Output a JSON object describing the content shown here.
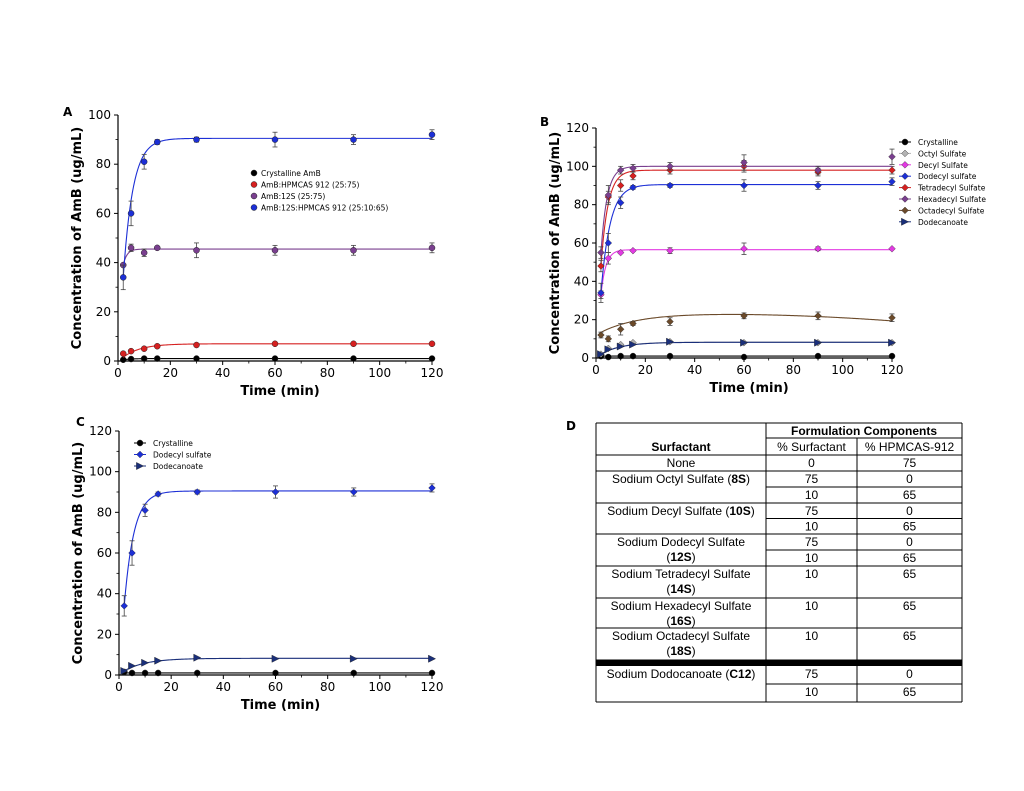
{
  "chart_data": [
    {
      "panel": "A",
      "type": "line",
      "xlabel": "Time (min)",
      "ylabel": "Concentration of AmB (ug/mL)",
      "xlim": [
        0,
        120
      ],
      "ylim": [
        0,
        100
      ],
      "xticks": [
        "0",
        "20",
        "40",
        "60",
        "80",
        "100",
        "120"
      ],
      "yticks": [
        "0",
        "20",
        "40",
        "60",
        "80",
        "100"
      ],
      "legend_position": "center-right",
      "series": [
        {
          "name": "Crystalline AmB",
          "color": "#000000",
          "marker": "circle",
          "x": [
            2,
            5,
            10,
            15,
            30,
            60,
            90,
            120
          ],
          "y": [
            0.5,
            0.8,
            1,
            1,
            1,
            1,
            1,
            1
          ],
          "err": [
            0,
            0,
            0,
            0,
            0,
            0,
            0,
            0
          ],
          "curve": [
            1,
            0.5,
            0.3
          ]
        },
        {
          "name": "AmB:HPMCAS 912 (25:75)",
          "color": "#d62020",
          "marker": "circle",
          "x": [
            2,
            5,
            10,
            15,
            30,
            60,
            90,
            120
          ],
          "y": [
            3,
            4,
            5,
            6,
            6.5,
            7,
            7,
            7
          ],
          "err": [
            0,
            0,
            0,
            0,
            0,
            0,
            0,
            0
          ],
          "curve": [
            7,
            1.5,
            0.15
          ]
        },
        {
          "name": "AmB:12S (25:75)",
          "color": "#7a3f8f",
          "marker": "circle",
          "x": [
            2,
            5,
            10,
            15,
            30,
            60,
            90,
            120
          ],
          "y": [
            39,
            46,
            44,
            46,
            45,
            45,
            45,
            46
          ],
          "err": [
            0,
            1.5,
            1.5,
            0,
            3,
            2,
            2,
            2
          ],
          "curve": [
            45.5,
            39,
            0.7
          ]
        },
        {
          "name": "AmB:12S:HPMCAS 912 (25:10:65)",
          "color": "#1c2fd6",
          "marker": "circle",
          "x": [
            2,
            5,
            10,
            15,
            30,
            60,
            90,
            120
          ],
          "y": [
            34,
            60,
            81,
            89,
            90,
            90,
            90,
            92
          ],
          "err": [
            5,
            5,
            3,
            1,
            1,
            3,
            2,
            2
          ],
          "curve": [
            90.5,
            34,
            0.27
          ]
        }
      ]
    },
    {
      "panel": "B",
      "type": "line",
      "xlabel": "Time (min)",
      "ylabel": "Concentration of AmB (ug/mL)",
      "xlim": [
        0,
        120
      ],
      "ylim": [
        0,
        120
      ],
      "xticks": [
        "0",
        "20",
        "40",
        "60",
        "80",
        "100",
        "120"
      ],
      "yticks": [
        "0",
        "20",
        "40",
        "60",
        "80",
        "100",
        "120"
      ],
      "legend_position": "right",
      "series": [
        {
          "name": "Crystalline",
          "color": "#000000",
          "marker": "circle",
          "x": [
            2,
            5,
            10,
            15,
            30,
            60,
            90,
            120
          ],
          "y": [
            1,
            0.5,
            1,
            1,
            1,
            0.5,
            1,
            1
          ],
          "err": [
            0,
            0,
            0,
            0,
            0,
            0,
            0,
            0
          ],
          "curve": [
            1,
            1,
            0.3
          ]
        },
        {
          "name": "Octyl Sulfate",
          "color": "#b4b4b4",
          "marker": "diamond",
          "x": [
            2,
            5,
            10,
            15,
            30,
            60,
            90,
            120
          ],
          "y": [
            2,
            5,
            7,
            8,
            8.5,
            8,
            8,
            8
          ],
          "err": [
            0,
            0,
            0,
            0,
            0,
            0,
            0,
            0
          ],
          "curve": [
            8.3,
            2,
            0.12
          ]
        },
        {
          "name": "Decyl Sulfate",
          "color": "#e23ae2",
          "marker": "diamond",
          "x": [
            2,
            5,
            10,
            15,
            30,
            60,
            90,
            120
          ],
          "y": [
            33,
            52,
            55,
            56,
            56,
            57,
            57,
            57
          ],
          "err": [
            2,
            3,
            0,
            0,
            1.5,
            3,
            1,
            0
          ],
          "curve": [
            56.5,
            33,
            0.5
          ]
        },
        {
          "name": "Dodecyl sulfate",
          "color": "#1c2fd6",
          "marker": "diamond",
          "x": [
            2,
            5,
            10,
            15,
            30,
            60,
            90,
            120
          ],
          "y": [
            34,
            60,
            81,
            89,
            90,
            90,
            90,
            92
          ],
          "err": [
            5,
            5,
            3,
            1,
            1,
            3,
            2,
            2
          ],
          "curve": [
            90.5,
            34,
            0.27
          ]
        },
        {
          "name": "Tetradecyl Sulfate",
          "color": "#d62020",
          "marker": "diamond",
          "x": [
            2,
            5,
            10,
            15,
            30,
            60,
            90,
            120
          ],
          "y": [
            48,
            84,
            90,
            95,
            98,
            100,
            97,
            98
          ],
          "err": [
            3,
            3,
            3,
            2,
            2,
            3,
            2,
            2
          ],
          "curve": [
            98,
            48,
            0.35
          ]
        },
        {
          "name": "Hexadecyl Sulfate",
          "color": "#7a3f8f",
          "marker": "diamond",
          "x": [
            2,
            5,
            10,
            15,
            30,
            60,
            90,
            120
          ],
          "y": [
            55,
            85,
            98,
            99,
            100,
            102,
            98,
            105
          ],
          "err": [
            3,
            5,
            2,
            2,
            2,
            4,
            2,
            4
          ],
          "curve": [
            100,
            55,
            0.4
          ]
        },
        {
          "name": "Octadecyl Sulfate",
          "color": "#6b4a2a",
          "marker": "diamond",
          "x": [
            2,
            5,
            10,
            15,
            30,
            60,
            90,
            120
          ],
          "y": [
            12,
            10,
            15,
            18,
            19,
            22,
            22,
            21
          ],
          "err": [
            1.5,
            1.5,
            3,
            1,
            2,
            1.5,
            2,
            2
          ],
          "curve": "octadecyl"
        },
        {
          "name": "Dodecanoate",
          "color": "#1a2f7a",
          "marker": "triangle",
          "x": [
            2,
            5,
            10,
            15,
            30,
            60,
            90,
            120
          ],
          "y": [
            2,
            4.5,
            6,
            7,
            8.5,
            8,
            8,
            8
          ],
          "err": [
            0,
            0,
            0,
            0,
            0,
            0,
            0,
            0
          ],
          "curve": [
            8.2,
            2,
            0.12
          ]
        }
      ]
    },
    {
      "panel": "C",
      "type": "line",
      "xlabel": "Time (min)",
      "ylabel": "Concentration of AmB (ug/mL)",
      "xlim": [
        0,
        120
      ],
      "ylim": [
        0,
        120
      ],
      "xticks": [
        "0",
        "20",
        "40",
        "60",
        "80",
        "100",
        "120"
      ],
      "yticks": [
        "0",
        "20",
        "40",
        "60",
        "80",
        "100",
        "120"
      ],
      "legend_position": "top-left",
      "series": [
        {
          "name": "Crystalline",
          "color": "#000000",
          "marker": "circle",
          "x": [
            2,
            5,
            10,
            15,
            30,
            60,
            90,
            120
          ],
          "y": [
            1.5,
            1,
            1,
            1,
            1,
            1,
            1,
            1
          ],
          "err": [
            0,
            0,
            0,
            0,
            0,
            0,
            0,
            0
          ],
          "curve": [
            1,
            1,
            0.3
          ]
        },
        {
          "name": "Dodecyl sulfate",
          "color": "#1c2fd6",
          "marker": "diamond",
          "x": [
            2,
            5,
            10,
            15,
            30,
            60,
            90,
            120
          ],
          "y": [
            34,
            60,
            81,
            89,
            90,
            90,
            90,
            92
          ],
          "err": [
            5,
            6,
            3,
            1,
            1,
            3,
            2,
            2
          ],
          "curve": [
            90.5,
            34,
            0.27
          ]
        },
        {
          "name": "Dodecanoate",
          "color": "#1a2f7a",
          "marker": "triangle",
          "x": [
            2,
            5,
            10,
            15,
            30,
            60,
            90,
            120
          ],
          "y": [
            2,
            4.5,
            6,
            7,
            8.5,
            8,
            8,
            8
          ],
          "err": [
            0,
            0,
            0,
            0,
            0,
            0,
            0,
            0
          ],
          "curve": [
            8.2,
            2,
            0.12
          ]
        }
      ]
    },
    {
      "panel": "D",
      "type": "table",
      "group_header": "Formulation Components",
      "columns": [
        "Surfactant",
        "% Surfactant",
        "% HPMCAS-912"
      ],
      "rows": [
        {
          "surfactant": "None",
          "code": "",
          "sub": [
            [
              "0",
              "75"
            ]
          ]
        },
        {
          "surfactant": "Sodium Octyl Sulfate (",
          "code": "8S",
          "tail": ")",
          "sub": [
            [
              "75",
              "0"
            ],
            [
              "10",
              "65"
            ]
          ]
        },
        {
          "surfactant": "Sodium Decyl Sulfate (",
          "code": "10S",
          "tail": ")",
          "sub": [
            [
              "75",
              "0"
            ],
            [
              "10",
              "65"
            ]
          ]
        },
        {
          "surfactant": "Sodium Dodecyl Sulfate",
          "line2pre": "(",
          "code": "12S",
          "tail": ")",
          "sub": [
            [
              "75",
              "0"
            ],
            [
              "10",
              "65"
            ]
          ]
        },
        {
          "surfactant": "Sodium Tetradecyl Sulfate",
          "line2pre": "(",
          "code": "14S",
          "tail": ")",
          "sub": [
            [
              "10",
              "65"
            ]
          ]
        },
        {
          "surfactant": "Sodium Hexadecyl Sulfate",
          "line2pre": "(",
          "code": "16S",
          "tail": ")",
          "sub": [
            [
              "10",
              "65"
            ]
          ]
        },
        {
          "surfactant": "Sodium Octadecyl Sulfate",
          "line2pre": "(",
          "code": "18S",
          "tail": ")",
          "sub": [
            [
              "10",
              "65"
            ]
          ]
        },
        {
          "surfactant": "Sodium Dodocanoate (",
          "code": "C12",
          "tail": ")",
          "sub": [
            [
              "75",
              "0"
            ],
            [
              "10",
              "65"
            ]
          ]
        }
      ]
    }
  ]
}
